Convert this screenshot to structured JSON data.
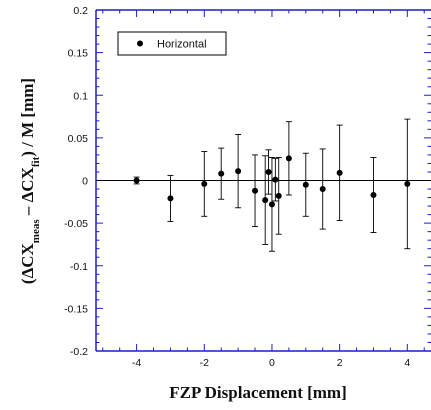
{
  "chart_data": {
    "type": "scatter",
    "title": "",
    "xlabel": "FZP Displacement [mm]",
    "ylabel": {
      "prefix": "(ΔCX",
      "sub1": "meas",
      "middle": " – ΔCX",
      "sub2": "fit",
      "suffix": ") / M [mm]"
    },
    "xlim": [
      -5.2,
      4.7
    ],
    "ylim": [
      -0.2,
      0.2
    ],
    "xticks": [
      -4,
      -2,
      0,
      2,
      4
    ],
    "yticks": [
      -0.2,
      -0.15,
      -0.1,
      -0.05,
      0,
      0.05,
      0.1,
      0.15,
      0.2
    ],
    "ytick_labels": [
      "-0.2",
      "-0.15",
      "-0.1",
      "-0.05",
      "0",
      "0.05",
      "0.1",
      "0.15",
      "0.2"
    ],
    "xtick_labels": [
      "-4",
      "-2",
      "0",
      "2",
      "4"
    ],
    "grid": false,
    "zero_line": true,
    "legend": {
      "position": "top-left",
      "entries": [
        "Horizontal"
      ]
    },
    "series": [
      {
        "name": "Horizontal",
        "color": "#000000",
        "points": [
          {
            "x": -4.0,
            "y": 0.0,
            "err": 0.004
          },
          {
            "x": -3.0,
            "y": -0.021,
            "err": 0.027
          },
          {
            "x": -2.0,
            "y": -0.004,
            "err": 0.038
          },
          {
            "x": -1.5,
            "y": 0.008,
            "err": 0.03
          },
          {
            "x": -1.0,
            "y": 0.011,
            "err": 0.043
          },
          {
            "x": -0.5,
            "y": -0.012,
            "err": 0.042
          },
          {
            "x": -0.2,
            "y": -0.023,
            "err": 0.052
          },
          {
            "x": -0.1,
            "y": 0.01,
            "err": 0.026
          },
          {
            "x": 0.0,
            "y": -0.028,
            "err": 0.055
          },
          {
            "x": 0.1,
            "y": 0.001,
            "err": 0.025
          },
          {
            "x": 0.2,
            "y": -0.018,
            "err": 0.045
          },
          {
            "x": 0.5,
            "y": 0.026,
            "err": 0.043
          },
          {
            "x": 1.0,
            "y": -0.005,
            "err": 0.037
          },
          {
            "x": 1.5,
            "y": -0.01,
            "err": 0.047
          },
          {
            "x": 2.0,
            "y": 0.009,
            "err": 0.056
          },
          {
            "x": 3.0,
            "y": -0.017,
            "err": 0.044
          },
          {
            "x": 4.0,
            "y": -0.004,
            "err": 0.076
          }
        ]
      }
    ]
  }
}
